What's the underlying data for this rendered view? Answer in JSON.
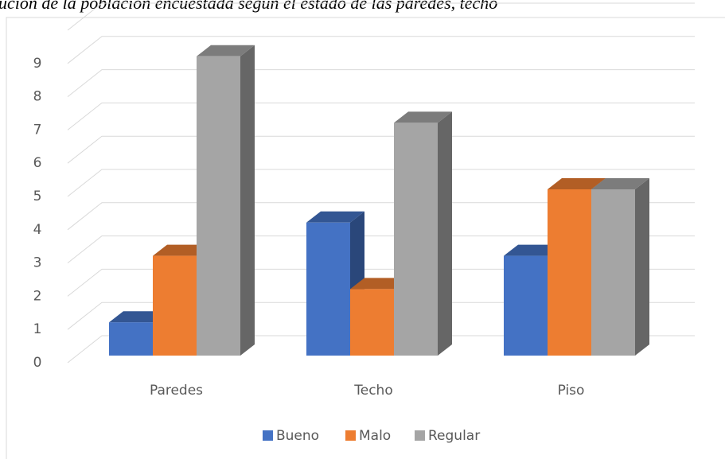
{
  "chart_data": {
    "type": "bar3d",
    "title": "ución de la población encuestada según el estado de las paredes, techo",
    "categories": [
      "Paredes",
      "Techo",
      "Piso"
    ],
    "series": [
      {
        "name": "Bueno",
        "color": "#4472c4",
        "values": [
          1,
          4,
          3
        ]
      },
      {
        "name": "Malo",
        "color": "#ed7d31",
        "values": [
          3,
          2,
          5
        ]
      },
      {
        "name": "Regular",
        "color": "#a5a5a5",
        "values": [
          9,
          7,
          5
        ]
      }
    ],
    "ylim": [
      0,
      10
    ],
    "yticks": [
      0,
      1,
      2,
      3,
      4,
      5,
      6,
      7,
      8,
      9
    ],
    "grid": true,
    "legend": "bottom"
  }
}
